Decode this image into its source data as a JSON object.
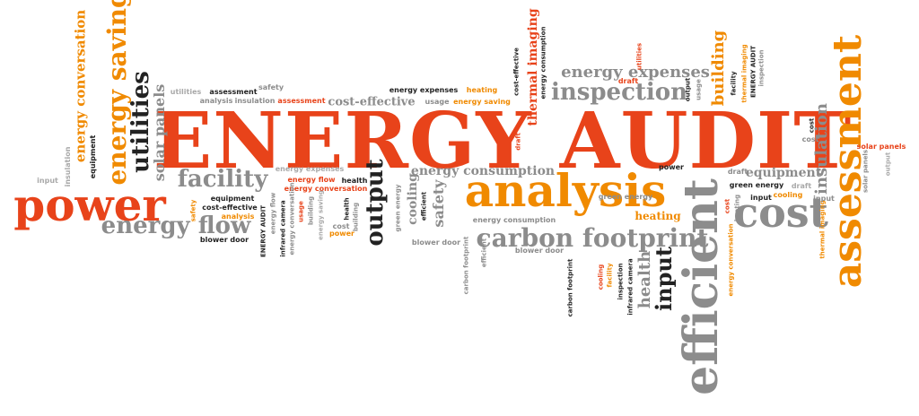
{
  "words": {
    "energy_audit": "ENERGY AUDIT",
    "analysis_big": "analysis",
    "power": "power",
    "efficient": "efficient",
    "assessment_big": "assessment",
    "cost_big": "cost",
    "carbon_footprint": "carbon footprint",
    "inspection": "inspection",
    "energy_expenses_top": "energy expenses",
    "facility": "facility",
    "energy_flow": "energy flow",
    "energy_saving_v": "energy saving",
    "energy_conversation_v": "energy conversation",
    "utilities_v": "utilities",
    "solar_panels_v": "solar panels",
    "output_v": "output",
    "input_v": "input",
    "health_v": "health",
    "building_v": "building",
    "thermal_imaging_v": "thermal imaging",
    "insulation_v": "insulation",
    "energy_consumption": "energy consumption",
    "equipment": "equipment",
    "cooling_v": "cooling",
    "safety_v": "safety",
    "heating": "heating",
    "small_utilities": "utilities",
    "small_assessment": "assessment",
    "small_safety": "safety",
    "small_insulation": "insulation",
    "small_analysis": "analysis",
    "small_assessment_r": "assessment",
    "small_cost_effective": "cost-effective",
    "small_energy_expenses": "energy expenses",
    "small_heating": "heating",
    "small_usage": "usage",
    "small_energy_saving": "energy saving",
    "small_input_l": "input",
    "small_insulation_v": "insulation",
    "small_energy_conversation": "energy conversation",
    "small_equipment_l": "equipment",
    "small_equipment": "equipment",
    "small_cost_effective2": "cost-effective",
    "small_analysis2": "analysis",
    "small_blower_door": "blower door",
    "small_energy_expenses2": "energy expenses",
    "small_energy_flow": "energy flow",
    "small_energy_conversation2": "energy conversation",
    "small_health": "health",
    "small_building": "building",
    "small_blower_door2": "blower door",
    "small_blower_door3": "blower door",
    "small_energy_consumption": "energy consumption",
    "small_green_energy": "green energy",
    "small_power": "power",
    "small_draft": "draft",
    "small_green_energy2": "green energy",
    "small_input": "input",
    "small_cooling": "cooling",
    "small_cost": "cost",
    "small_solar_panels": "solar panels",
    "small_output": "output",
    "small_energy_audit": "ENERGY AUDIT",
    "small_infrared_camera": "infrared camera",
    "small_usage_v": "usage",
    "small_energy_saving_v": "energy saving",
    "small_cost_r": "cost",
    "small_power_r": "power",
    "small_green_energy_v": "green energy",
    "small_safety_v": "safety",
    "small_efficient": "efficient",
    "small_carbon_footprint_v": "carbon footprint",
    "small_carbon_footprint_v2": "carbon footprint",
    "small_cooling_v": "cooling",
    "small_facility_v": "facility",
    "small_inspection_v": "inspection",
    "small_infrared_camera_v": "infrared camera",
    "small_draft_v": "draft",
    "small_energy_consumption_v": "energy consumption",
    "small_cost_effective_v": "cost-effective",
    "small_utilities_v": "utilities",
    "small_draft2": "draft",
    "small_output_v": "output",
    "small_usage_v2": "usage",
    "small_inspection_v2": "inspection",
    "small_facility_v2": "facility",
    "small_thermal_imaging_v": "thermal imaging",
    "small_energy_audit_v": "ENERGY AUDIT",
    "small_cost_v": "cost",
    "small_heating_v": "heating",
    "small_solar_panels_r": "solar panels",
    "small_solar_panels_v": "solar panels",
    "small_output_v2": "output",
    "small_energy_conversation_v": "energy conversation",
    "small_thermal_imaging_v2": "thermal imaging",
    "small_draft3": "draft",
    "small_input2": "input",
    "small_green_energy3": "green energy"
  },
  "colors": {
    "orange": "#f08a00",
    "red": "#e8431a",
    "gray": "#8c8c8c",
    "dark": "#222222",
    "light_gray": "#a9a9a9"
  }
}
